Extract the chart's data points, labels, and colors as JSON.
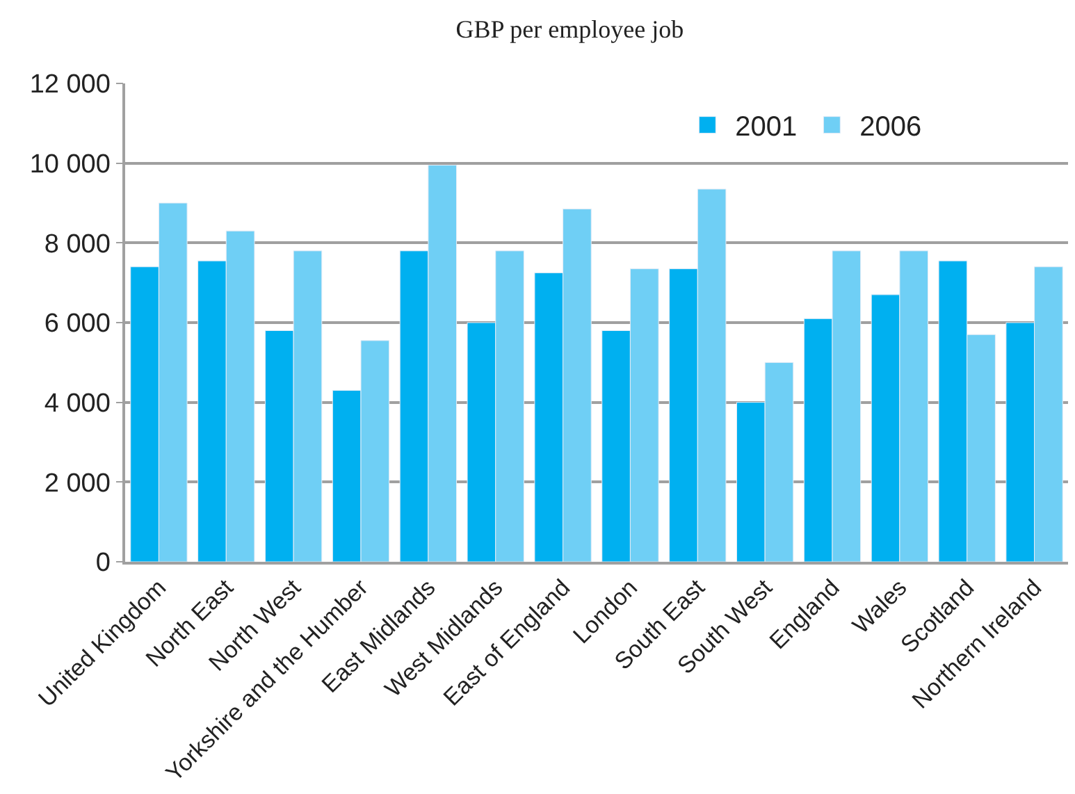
{
  "chart_data": {
    "type": "bar",
    "title": "GBP per employee job",
    "categories": [
      "United Kingdom",
      "North East",
      "North West",
      "Yorkshire and the Humber",
      "East Midlands",
      "West Midlands",
      "East of England",
      "London",
      "South East",
      "South West",
      "England",
      "Wales",
      "Scotland",
      "Northern Ireland"
    ],
    "series": [
      {
        "name": "2001",
        "color": "#00b0f0",
        "values": [
          7400,
          7550,
          5800,
          4300,
          7800,
          6000,
          7250,
          5800,
          7350,
          4000,
          6100,
          6700,
          7550,
          6000
        ]
      },
      {
        "name": "2006",
        "color": "#6fcff5",
        "values": [
          9000,
          8300,
          7800,
          5550,
          9950,
          7800,
          8850,
          7350,
          9350,
          5000,
          7800,
          7800,
          5700,
          7400
        ]
      }
    ],
    "ylim": [
      0,
      12000
    ],
    "yticks": [
      {
        "value": 0,
        "label": "0"
      },
      {
        "value": 2000,
        "label": "2 000"
      },
      {
        "value": 4000,
        "label": "4 000"
      },
      {
        "value": 6000,
        "label": "6 000"
      },
      {
        "value": 8000,
        "label": "8 000"
      },
      {
        "value": 10000,
        "label": "10 000"
      },
      {
        "value": 12000,
        "label": "12 000"
      }
    ],
    "grid": "y",
    "legend": "top"
  }
}
